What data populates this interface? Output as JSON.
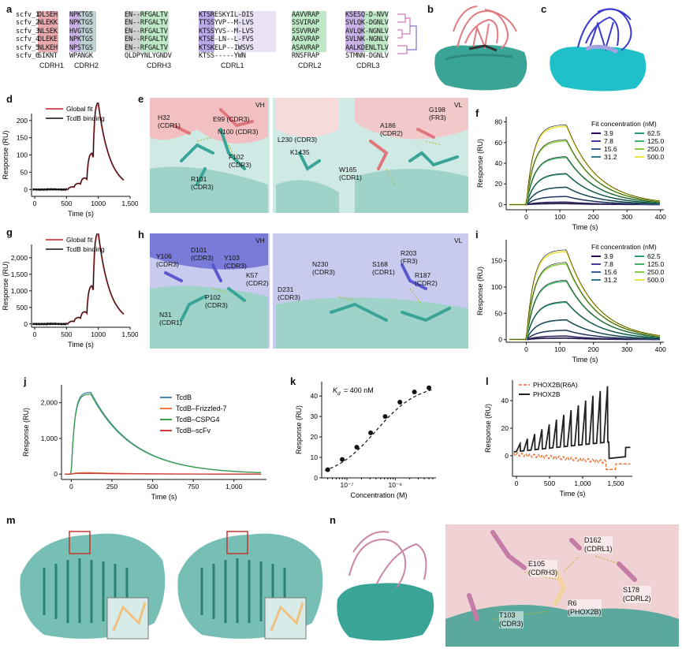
{
  "panels": {
    "a": "a",
    "b": "b",
    "c": "c",
    "d": "d",
    "e": "e",
    "f": "f",
    "g": "g",
    "h": "h",
    "i": "i",
    "j": "j",
    "k": "k",
    "l": "l",
    "m": "m",
    "n": "n"
  },
  "alignment": {
    "names": [
      "scfv_1",
      "scfv_2",
      "scfv_3",
      "scfv_4",
      "scfv_5",
      "scfv_6"
    ],
    "cdrh1": [
      "DLSEH",
      "NLEKK",
      "NLSEK",
      "DLEKE",
      "NLKEH",
      "SIKNT"
    ],
    "cdrh2": [
      "NPKTGS",
      "NPKTGS",
      "HVGTGS",
      "NPKTGS",
      "NPSTGS",
      "WPANGK"
    ],
    "cdrh3": [
      "EN--RFGALTV",
      "EN--RFGALTV",
      "EN--RFGALTV",
      "EN--RFGALTV",
      "EN--RFGALTV",
      "QLDPYNLYGNDV"
    ],
    "cdrl1": [
      "KTSRESKYIL-DIS",
      "TTSSYVP--M-LVS",
      "KTSSYVS--M-LVS",
      "KTSE-LN--L-FVS",
      "KTSKELP--IWSVS",
      "KTSS-----YWN"
    ],
    "cdrl2": [
      "AAVVRAP",
      "SSVIRAP",
      "SSVVRAP",
      "AASVRAP",
      "ASAVRAP",
      "RNSFRAP"
    ],
    "cdrl3": [
      "KSESQ-D-NVV",
      "SVLQK-DGNLV",
      "AVLQK-NGNLV",
      "SVLNK-NGNLV",
      "AALKDENLTLV",
      "STMNN-DGNLV"
    ],
    "headers": [
      "CDRH1",
      "CDRH2",
      "CDRH3",
      "CDRL1",
      "CDRL2",
      "CDRL3"
    ]
  },
  "chart_data": [
    {
      "panel": "d",
      "type": "line",
      "title": "",
      "xlabel": "Time (s)",
      "ylabel": "Response (RU)",
      "xlim": [
        -50,
        1500
      ],
      "ylim": [
        -20,
        220
      ],
      "xticks": [
        0,
        500,
        1000,
        "1,500"
      ],
      "yticks": [
        0,
        50,
        100,
        150,
        200
      ],
      "legend": [
        "Global fit",
        "TcdB binding"
      ]
    },
    {
      "panel": "g",
      "type": "line",
      "title": "",
      "xlabel": "Time (s)",
      "ylabel": "Response (RU)",
      "xlim": [
        -50,
        1500
      ],
      "ylim": [
        -100,
        2400
      ],
      "xticks": [
        0,
        500,
        1000,
        "1,500"
      ],
      "yticks": [
        0,
        "500",
        "1,000",
        "1,500",
        "2,000"
      ],
      "legend": [
        "Global fit",
        "TcdB binding"
      ]
    },
    {
      "panel": "f",
      "type": "line",
      "xlabel": "Time (s)",
      "ylabel": "Response (RU)",
      "xlim": [
        -60,
        410
      ],
      "ylim": [
        -5,
        85
      ],
      "xticks": [
        0,
        100,
        200,
        300,
        400
      ],
      "yticks": [
        0,
        20,
        40,
        60,
        80
      ],
      "legend_title": "Fit concentration (nM)",
      "series": [
        {
          "name": "3.9",
          "peak": 1
        },
        {
          "name": "7.8",
          "peak": 2.5
        },
        {
          "name": "15.6",
          "peak": 8
        },
        {
          "name": "31.2",
          "peak": 17
        },
        {
          "name": "62.5",
          "peak": 30
        },
        {
          "name": "125.0",
          "peak": 46
        },
        {
          "name": "250.0",
          "peak": 62
        },
        {
          "name": "500.0",
          "peak": 76
        }
      ]
    },
    {
      "panel": "i",
      "type": "line",
      "xlabel": "Time (s)",
      "ylabel": "Response (RU)",
      "xlim": [
        -60,
        410
      ],
      "ylim": [
        -5,
        190
      ],
      "xticks": [
        0,
        100,
        200,
        300,
        400
      ],
      "yticks": [
        0,
        50,
        100,
        150
      ],
      "legend_title": "Fit concentration (nM)",
      "series": [
        {
          "name": "3.9",
          "peak": 3
        },
        {
          "name": "7.8",
          "peak": 7
        },
        {
          "name": "15.6",
          "peak": 18
        },
        {
          "name": "31.2",
          "peak": 38
        },
        {
          "name": "62.5",
          "peak": 72
        },
        {
          "name": "125.0",
          "peak": 112
        },
        {
          "name": "250.0",
          "peak": 145
        },
        {
          "name": "500.0",
          "peak": 168
        }
      ]
    },
    {
      "panel": "j",
      "type": "line",
      "xlabel": "Time (s)",
      "ylabel": "Response (RU)",
      "xlim": [
        -60,
        1200
      ],
      "ylim": [
        -150,
        2500
      ],
      "xticks": [
        0,
        250,
        500,
        750,
        "1,000"
      ],
      "yticks": [
        0,
        "1,000",
        "2,000"
      ],
      "series": [
        {
          "name": "TcdB",
          "peak": 2300
        },
        {
          "name": "TcdB–Frizzled-7",
          "peak": 40
        },
        {
          "name": "TcdB–CSPG4",
          "peak": 2250
        },
        {
          "name": "TcdB–scFv",
          "peak": 20
        }
      ]
    },
    {
      "panel": "k",
      "type": "scatter",
      "xlabel": "Concentration (M)",
      "ylabel": "Response (RU)",
      "annotation": "K",
      "annotation_sub": "d",
      "annotation_value": "= 400 nM",
      "x": [
        4e-08,
        8e-08,
        1.6e-07,
        3.1e-07,
        6.2e-07,
        1.25e-06,
        2.5e-06,
        5e-06
      ],
      "y": [
        4,
        9,
        15,
        22,
        30,
        37,
        42,
        44
      ],
      "ylim": [
        0,
        47
      ],
      "xticks": [
        "10⁻⁷",
        "10⁻⁶"
      ],
      "yticks": [
        0,
        10,
        20,
        30,
        40
      ]
    },
    {
      "panel": "l",
      "type": "line",
      "xlabel": "Time (s)",
      "ylabel": "Response (RU)",
      "xlim": [
        -60,
        1750
      ],
      "ylim": [
        -15,
        55
      ],
      "xticks": [
        0,
        500,
        "1,000",
        "1,500"
      ],
      "yticks": [
        0,
        20,
        40
      ],
      "series": [
        {
          "name": "PHOX2B(R6A)"
        },
        {
          "name": "PHOX2B"
        }
      ]
    }
  ],
  "structure_labels": {
    "e_left": [
      "H32\n(CDR1)",
      "E99 (CDR3)",
      "N100 (CDR3)",
      "F102\n(CDR3)",
      "R101\n(CDR3)",
      "VH"
    ],
    "e_right": [
      "L230 (CDR3)",
      "K1435",
      "W165\n(CDR1)",
      "A186\n(CDR2)",
      "G198\n(FR3)",
      "VL"
    ],
    "h_left": [
      "Y106\n(CDR3)",
      "D101\n(CDR3)",
      "Y103\n(CDR3)",
      "K57\n(CDR2)",
      "P102\n(CDR3)",
      "N31\n(CDR1)",
      "VH"
    ],
    "h_right": [
      "N230\n(CDR3)",
      "S168\n(CDR1)",
      "R203\n(FR3)",
      "R187\n(CDR2)",
      "D231\n(CDR3)",
      "VL"
    ],
    "n": [
      "E105\n(CDRH3)",
      "D162\n(CDRL1)",
      "S178\n(CDRL2)",
      "T103\n(CDR3)",
      "R6\n(PHOX2B)"
    ]
  },
  "colors": {
    "fit_red": "#d9535a",
    "black": "#111111",
    "teal": "#3aa597",
    "pink": "#e8878c",
    "blue": "#4040c8",
    "cyan": "#20c0c8",
    "lilac": "#a3a3e0"
  }
}
